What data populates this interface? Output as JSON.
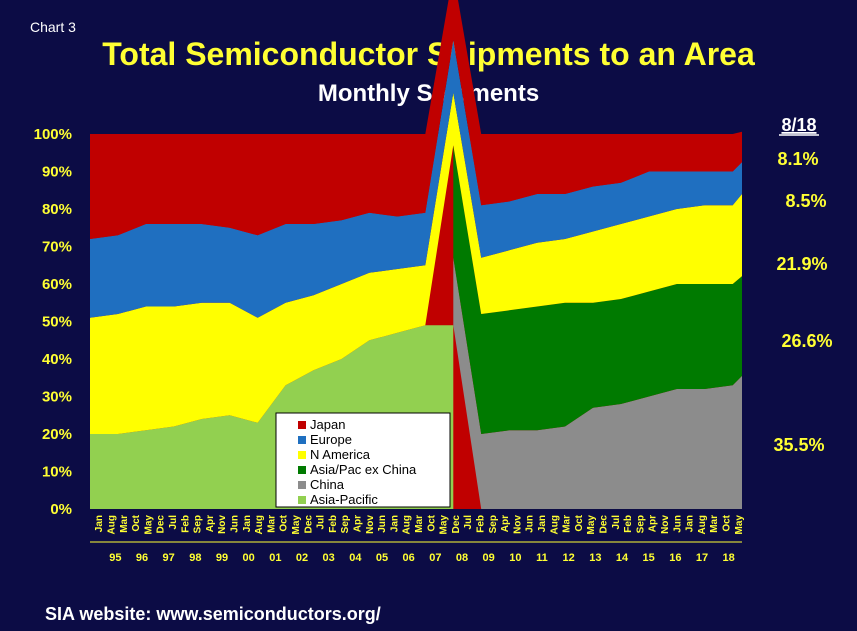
{
  "header": {
    "chart_label": "Chart 3",
    "title": "Total Semiconductor Shipments to an Area",
    "subtitle": "Monthly Shipments"
  },
  "footer": {
    "text": "SIA website:  www.semiconductors.org/"
  },
  "colors": {
    "background": "#0c0c45",
    "Japan": "#c00000",
    "Europe": "#1f6fc0",
    "N America": "#ffff00",
    "Asia/Pac ex China": "#007a00",
    "China": "#8c8c8c",
    "Asia-Pacific": "#92d050"
  },
  "chart_data": {
    "type": "area",
    "stacked": "percent",
    "ylim": [
      0,
      100
    ],
    "y_ticks": [
      "0%",
      "10%",
      "20%",
      "30%",
      "40%",
      "50%",
      "60%",
      "70%",
      "80%",
      "90%",
      "100%"
    ],
    "x_month_ticks": [
      "Jan",
      "Aug",
      "Mar",
      "Oct",
      "May",
      "Dec",
      "Jul",
      "Feb",
      "Sep",
      "Apr",
      "Nov",
      "Jun",
      "Jan",
      "Aug",
      "Mar",
      "Oct",
      "May",
      "Dec",
      "Jul",
      "Feb",
      "Sep",
      "Apr",
      "Nov",
      "Jun",
      "Jan",
      "Aug",
      "Mar",
      "Oct",
      "May",
      "Dec",
      "Jul",
      "Feb",
      "Sep",
      "Apr",
      "Nov",
      "Jun",
      "Jan",
      "Aug",
      "Mar",
      "Oct",
      "May",
      "Dec",
      "Jul",
      "Feb",
      "Sep",
      "Apr",
      "Nov",
      "Jun",
      "Jan",
      "Aug",
      "Mar",
      "Oct",
      "May"
    ],
    "x_year_ticks": [
      "95",
      "96",
      "97",
      "98",
      "99",
      "00",
      "01",
      "02",
      "03",
      "04",
      "05",
      "06",
      "07",
      "08",
      "09",
      "10",
      "11",
      "12",
      "13",
      "14",
      "15",
      "16",
      "17",
      "18"
    ],
    "x": [
      "1995-01",
      "1996-01",
      "1997-01",
      "1998-01",
      "1999-01",
      "2000-01",
      "2001-01",
      "2002-01",
      "2003-01",
      "2004-01",
      "2005-01",
      "2006-01",
      "2007-01",
      "2008-01",
      "2009-01",
      "2010-01",
      "2011-01",
      "2012-01",
      "2013-01",
      "2014-01",
      "2015-01",
      "2016-01",
      "2017-01",
      "2018-01",
      "2018-05"
    ],
    "series": [
      {
        "name": "Asia-Pacific",
        "values": [
          20,
          20,
          21,
          22,
          24,
          25,
          23,
          33,
          37,
          40,
          45,
          47,
          49,
          49,
          null,
          null,
          null,
          null,
          null,
          null,
          null,
          null,
          null,
          null,
          null
        ]
      },
      {
        "name": "China",
        "values": [
          null,
          null,
          null,
          null,
          null,
          null,
          null,
          null,
          null,
          null,
          null,
          null,
          null,
          18,
          20,
          21,
          21,
          22,
          27,
          28,
          30,
          32,
          32,
          33,
          35.5
        ]
      },
      {
        "name": "Asia/Pac ex China",
        "values": [
          null,
          null,
          null,
          null,
          null,
          null,
          null,
          null,
          null,
          null,
          null,
          null,
          null,
          30,
          32,
          32,
          33,
          33,
          28,
          28,
          28,
          28,
          28,
          27,
          26.6
        ]
      },
      {
        "name": "N America",
        "values": [
          31,
          32,
          33,
          32,
          31,
          30,
          28,
          22,
          20,
          20,
          18,
          17,
          16,
          14,
          15,
          16,
          17,
          17,
          19,
          20,
          20,
          20,
          21,
          21,
          21.9
        ]
      },
      {
        "name": "Europe",
        "values": [
          21,
          21,
          22,
          22,
          21,
          20,
          22,
          21,
          19,
          17,
          16,
          14,
          14,
          14,
          14,
          13,
          13,
          12,
          12,
          11,
          12,
          10,
          9,
          9,
          8.5
        ]
      },
      {
        "name": "Japan",
        "values": [
          28,
          27,
          24,
          24,
          24,
          25,
          27,
          24,
          24,
          23,
          21,
          22,
          21,
          18,
          19,
          18,
          16,
          16,
          14,
          13,
          10,
          10,
          10,
          10,
          8.1
        ]
      }
    ],
    "legend": [
      "Japan",
      "Europe",
      "N America",
      "Asia/Pac ex China",
      "China",
      "Asia-Pacific"
    ],
    "legend_position": "bottom-center",
    "latest_label": "8/18",
    "latest_shares": [
      {
        "name": "Japan",
        "text": "8.1%"
      },
      {
        "name": "Europe",
        "text": "8.5%"
      },
      {
        "name": "N America",
        "text": "21.9%"
      },
      {
        "name": "Asia/Pac ex China",
        "text": "26.6%"
      },
      {
        "name": "China",
        "text": "35.5%"
      }
    ]
  }
}
